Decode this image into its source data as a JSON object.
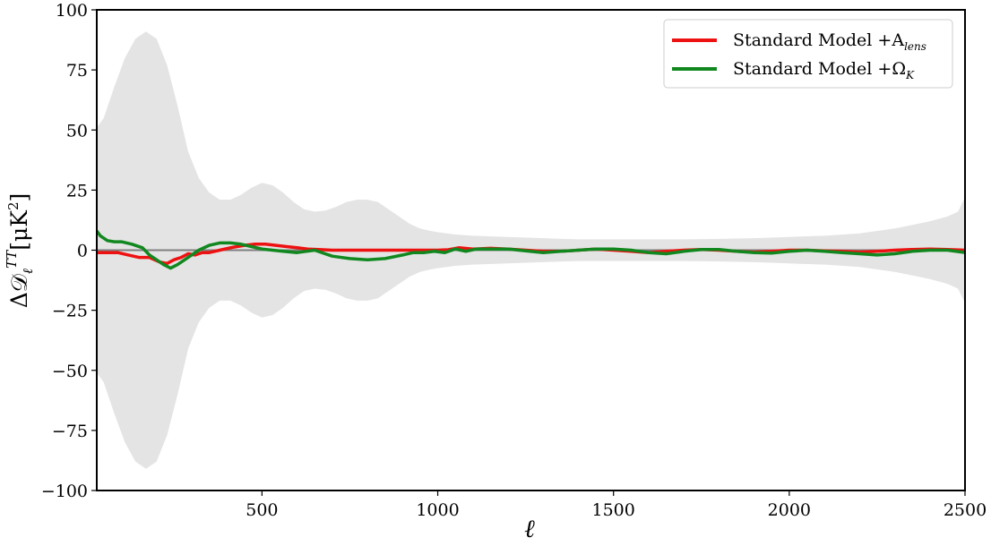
{
  "chart_data": {
    "type": "line",
    "xlabel": "ℓ",
    "ylabel": {
      "prefix": "Δ𝒟",
      "sub": "ℓ",
      "sup": "TT",
      "suffix": "[μK",
      "suffix_sup": "2",
      "suffix_end": "]"
    },
    "xlim": [
      30,
      2500
    ],
    "ylim": [
      -100,
      100
    ],
    "x_ticks": [
      500,
      1000,
      1500,
      2000,
      2500
    ],
    "y_ticks": [
      -100,
      -75,
      -50,
      -25,
      0,
      25,
      50,
      75,
      100
    ],
    "x_tick_labels": [
      "500",
      "1000",
      "1500",
      "2000",
      "2500"
    ],
    "y_tick_labels": [
      "−100",
      "−75",
      "−50",
      "−25",
      "0",
      "25",
      "50",
      "75",
      "100"
    ],
    "legend_position": "top-right",
    "grid": false,
    "zero_line": {
      "y": 0,
      "color": "#808080"
    },
    "error_band": {
      "color": "#e4e4e4",
      "x": [
        30,
        50,
        80,
        110,
        140,
        170,
        200,
        230,
        260,
        290,
        320,
        350,
        380,
        410,
        440,
        470,
        500,
        530,
        560,
        590,
        620,
        650,
        680,
        710,
        740,
        770,
        800,
        830,
        860,
        890,
        920,
        950,
        980,
        1000,
        1050,
        1100,
        1200,
        1300,
        1400,
        1500,
        1600,
        1700,
        1800,
        1900,
        2000,
        2100,
        2200,
        2300,
        2400,
        2450,
        2480,
        2500
      ],
      "upper": [
        51,
        55,
        68,
        80,
        88,
        91,
        88,
        77,
        60,
        41,
        30,
        24,
        21,
        21,
        23,
        26,
        28,
        27,
        24,
        20,
        17,
        16,
        16.5,
        18,
        20,
        21,
        21,
        20,
        17,
        14,
        11,
        9,
        8,
        7.5,
        6.5,
        6,
        5.5,
        5,
        4.5,
        4.5,
        4.5,
        4.5,
        4.7,
        5,
        5.5,
        6,
        7,
        9,
        12,
        14,
        16,
        22
      ],
      "lower": [
        -51,
        -55,
        -68,
        -80,
        -88,
        -91,
        -88,
        -77,
        -60,
        -41,
        -30,
        -24,
        -21,
        -21,
        -23,
        -26,
        -28,
        -27,
        -24,
        -20,
        -17,
        -16,
        -16.5,
        -18,
        -20,
        -21,
        -21,
        -20,
        -17,
        -14,
        -11,
        -9,
        -8,
        -7.5,
        -6.5,
        -6,
        -5.5,
        -5,
        -4.5,
        -4.5,
        -4.5,
        -4.5,
        -4.7,
        -5,
        -5.5,
        -6,
        -7,
        -9,
        -12,
        -14,
        -16,
        -22
      ]
    },
    "series": [
      {
        "name": "Standard Model +A",
        "name_sub": "lens",
        "color": "#ee1111",
        "x": [
          30,
          60,
          90,
          120,
          150,
          180,
          210,
          230,
          250,
          270,
          290,
          310,
          330,
          350,
          380,
          410,
          450,
          480,
          510,
          540,
          570,
          600,
          630,
          660,
          700,
          750,
          800,
          850,
          900,
          950,
          1000,
          1030,
          1060,
          1100,
          1150,
          1200,
          1250,
          1300,
          1350,
          1400,
          1450,
          1500,
          1550,
          1600,
          1650,
          1700,
          1750,
          1800,
          1850,
          1900,
          1950,
          2000,
          2050,
          2100,
          2150,
          2200,
          2250,
          2300,
          2350,
          2400,
          2450,
          2500
        ],
        "y": [
          -1,
          -1,
          -1,
          -2,
          -3,
          -3,
          -5,
          -5.5,
          -4,
          -3,
          -1.5,
          -2,
          -1,
          -1,
          0,
          1,
          2,
          2.5,
          2.5,
          2,
          1.5,
          1,
          0.5,
          0.3,
          0,
          0,
          0,
          0,
          0,
          0,
          0,
          0.2,
          1,
          0.5,
          0.8,
          0.5,
          0,
          -0.5,
          -0.5,
          0,
          0.5,
          0,
          -0.5,
          -1,
          -0.5,
          0,
          0.3,
          0,
          -0.5,
          -0.8,
          -0.5,
          0,
          0,
          -0.3,
          -0.5,
          -0.8,
          -0.5,
          0,
          0.3,
          0.5,
          0.3,
          0
        ]
      },
      {
        "name": "Standard Model +Ω",
        "name_sub": "K",
        "color": "#11881f",
        "x": [
          30,
          40,
          60,
          80,
          100,
          130,
          160,
          180,
          200,
          220,
          240,
          260,
          290,
          320,
          350,
          380,
          410,
          440,
          470,
          500,
          530,
          560,
          600,
          650,
          700,
          750,
          800,
          850,
          900,
          930,
          960,
          990,
          1020,
          1050,
          1080,
          1110,
          1150,
          1200,
          1250,
          1300,
          1350,
          1400,
          1450,
          1500,
          1550,
          1600,
          1650,
          1700,
          1750,
          1800,
          1850,
          1900,
          1950,
          2000,
          2050,
          2100,
          2150,
          2200,
          2250,
          2300,
          2350,
          2400,
          2450,
          2500
        ],
        "y": [
          8,
          6,
          4,
          3.5,
          3.5,
          2.5,
          1,
          -2,
          -4,
          -6,
          -7.5,
          -6,
          -3,
          0,
          2,
          3,
          3,
          2.5,
          1.5,
          0.5,
          0,
          -0.5,
          -1,
          0,
          -2.5,
          -3.5,
          -4,
          -3.5,
          -2,
          -1,
          -1,
          -0.5,
          -1,
          0.5,
          -0.5,
          0.5,
          0.5,
          0.5,
          -0.3,
          -1,
          -0.5,
          0,
          0.5,
          0.5,
          0,
          -1,
          -1.5,
          -0.5,
          0.3,
          0.3,
          -0.5,
          -1,
          -1.2,
          -0.5,
          0,
          -0.5,
          -1,
          -1.5,
          -2,
          -1.5,
          -0.5,
          0,
          0,
          -1
        ]
      }
    ]
  }
}
